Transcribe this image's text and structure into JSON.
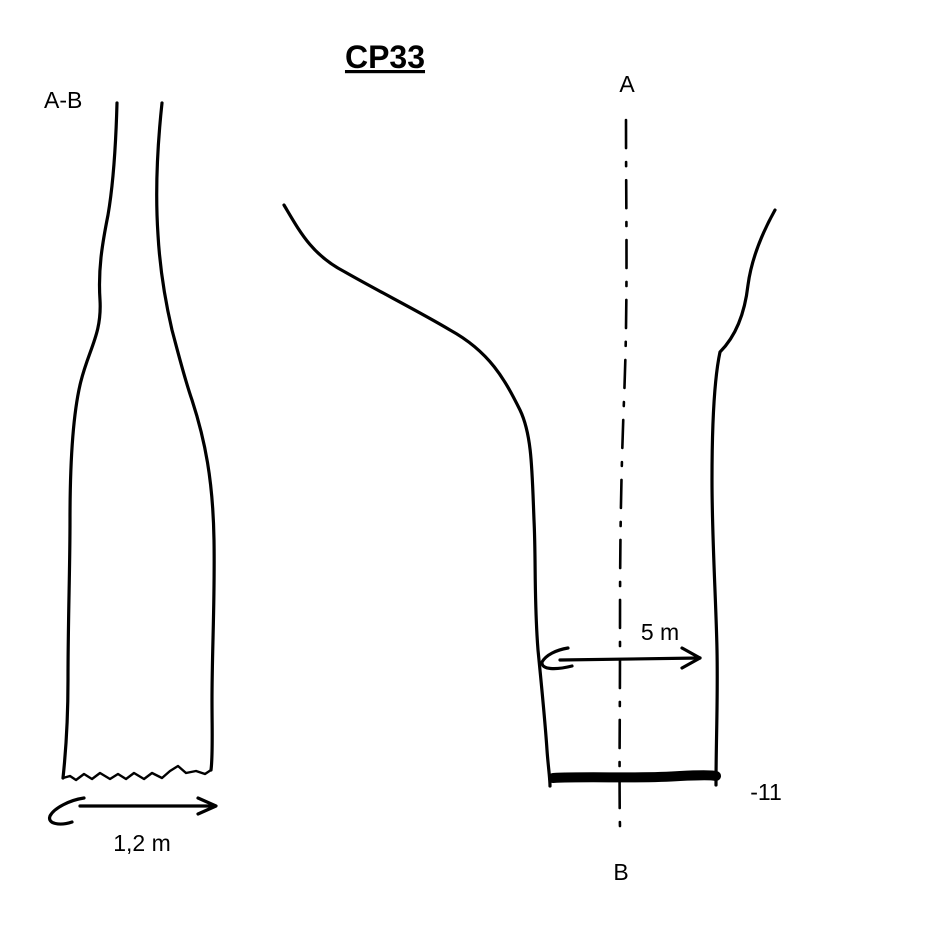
{
  "title": "CP33",
  "left_section": {
    "label": "A-B",
    "width_dimension": "1,2 m"
  },
  "right_section": {
    "top_marker": "A",
    "bottom_marker": "B",
    "width_dimension": "5 m",
    "depth_label": "-11"
  }
}
